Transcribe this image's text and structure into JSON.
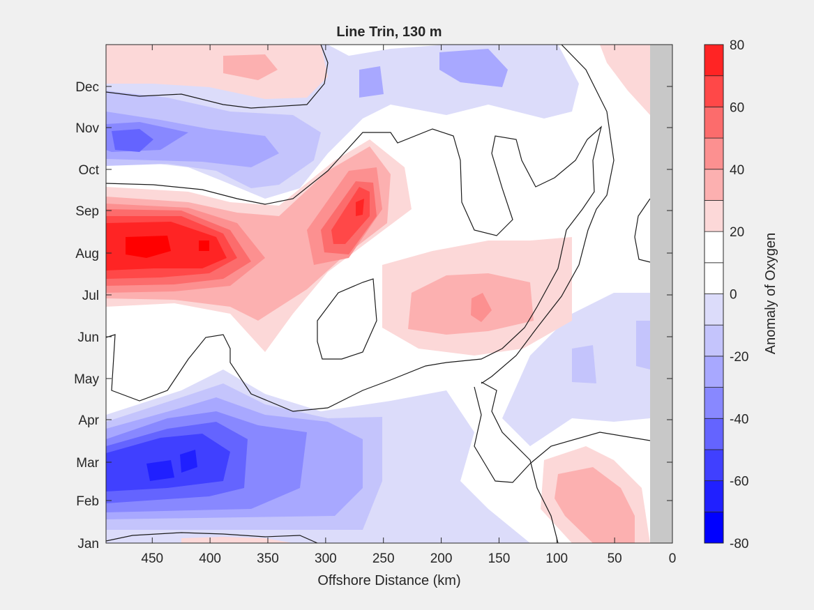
{
  "chart_data": {
    "type": "heatmap",
    "title": "Line Trin, 130 m",
    "xlabel": "Offshore Distance (km)",
    "colorbar_label": "Anomaly of Oxygen",
    "x_ticks": [
      450,
      400,
      350,
      300,
      250,
      200,
      150,
      100,
      50,
      0
    ],
    "xlim": [
      490,
      0
    ],
    "x_reversed": true,
    "y_ticks": [
      "Jan",
      "Feb",
      "Mar",
      "Apr",
      "May",
      "Jun",
      "Jul",
      "Aug",
      "Sep",
      "Oct",
      "Nov",
      "Dec"
    ],
    "colorbar_ticks": [
      80,
      60,
      40,
      20,
      0,
      -20,
      -40,
      -60,
      -80
    ],
    "clim": [
      -80,
      80
    ],
    "levels": [
      -80,
      -70,
      -60,
      -50,
      -40,
      -30,
      -20,
      -10,
      10,
      20,
      30,
      40,
      50,
      60,
      70,
      80
    ],
    "colors": [
      "#0000ff",
      "#2020ff",
      "#4040ff",
      "#6464ff",
      "#8888ff",
      "#a8a8ff",
      "#c4c4fc",
      "#dcdcfa",
      "#ffffff",
      "#ffffff",
      "#fcd8d8",
      "#fcb0b0",
      "#fc9090",
      "#fc6c6c",
      "#ff4848",
      "#ff2424",
      "#ff0000"
    ],
    "no_data_color": "#c8c8c8",
    "contour_line": 0,
    "features": [
      {
        "type": "max",
        "x": 420,
        "month": "Aug",
        "value": 70
      },
      {
        "type": "max",
        "x": 272,
        "month": "Sep",
        "value": 60
      },
      {
        "type": "max",
        "x": 170,
        "month": "Jul",
        "value": 35
      },
      {
        "type": "min",
        "x": 430,
        "month": "Mar",
        "value": -70
      },
      {
        "type": "min",
        "x": 460,
        "month": "Nov",
        "value": -50
      },
      {
        "type": "min",
        "x": 170,
        "month": "Dec",
        "value": -25
      }
    ]
  }
}
